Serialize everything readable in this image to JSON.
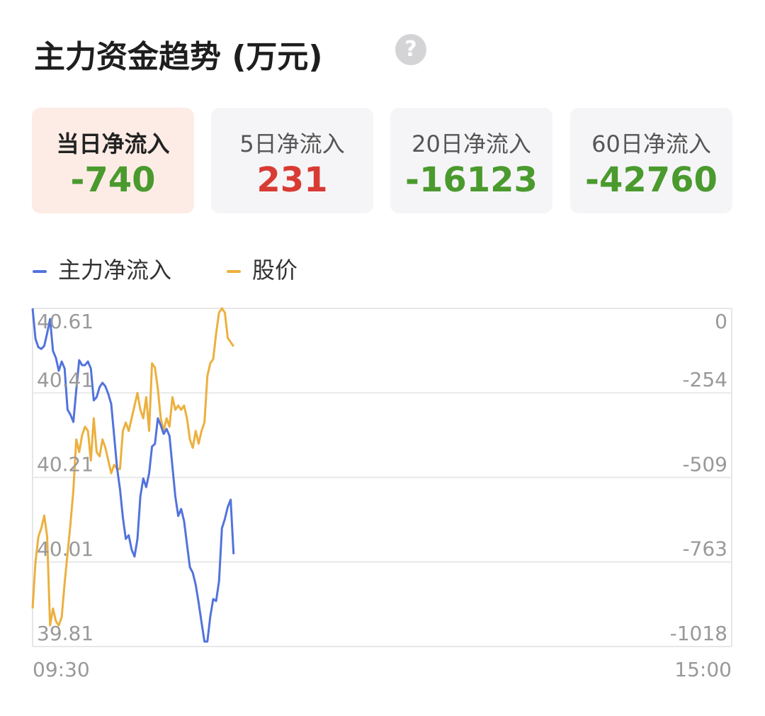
{
  "header": {
    "title": "主力资金趋势 (万元)",
    "help": "?"
  },
  "cards": [
    {
      "label": "当日净流入",
      "value": -740,
      "color": "#4a9a2e",
      "active": true
    },
    {
      "label": "5日净流入",
      "value": 231,
      "color": "#d83a34",
      "active": false
    },
    {
      "label": "20日净流入",
      "value": -16123,
      "color": "#4a9a2e",
      "active": false
    },
    {
      "label": "60日净流入",
      "value": -42760,
      "color": "#4a9a2e",
      "active": false
    }
  ],
  "chart_data": {
    "type": "line",
    "x": [
      0,
      1,
      2,
      3,
      4,
      5,
      6,
      7,
      8,
      9,
      10,
      11,
      12,
      13,
      14,
      15,
      16,
      17,
      18,
      19,
      20,
      21,
      22,
      23,
      24,
      25,
      26,
      27,
      28,
      29,
      30,
      31,
      32,
      33,
      34,
      35,
      36,
      37,
      38,
      39,
      40,
      41,
      42,
      43,
      44,
      45,
      46,
      47,
      48,
      49,
      50,
      51,
      52,
      53,
      54,
      55,
      56,
      57,
      58,
      59,
      60,
      61,
      62,
      63,
      64,
      65,
      66,
      67,
      68,
      69
    ],
    "xlim": [
      0,
      240
    ],
    "xticks": [
      {
        "value": 0,
        "label": "09:30"
      },
      {
        "value": 240,
        "label": "15:00"
      }
    ],
    "series": [
      {
        "name": "主力净流入",
        "color": "#5273dc",
        "axis": "y2",
        "values": [
          0,
          -92,
          -117,
          -122,
          -113,
          -75,
          -32,
          -128,
          -149,
          -188,
          -160,
          -181,
          -305,
          -320,
          -342,
          -245,
          -156,
          -171,
          -171,
          -160,
          -181,
          -277,
          -267,
          -237,
          -224,
          -235,
          -258,
          -288,
          -384,
          -480,
          -544,
          -630,
          -694,
          -683,
          -726,
          -747,
          -694,
          -566,
          -512,
          -538,
          -497,
          -416,
          -408,
          -331,
          -352,
          -378,
          -363,
          -384,
          -476,
          -566,
          -625,
          -604,
          -640,
          -710,
          -779,
          -796,
          -832,
          -886,
          -945,
          -1003,
          -1003,
          -928,
          -875,
          -881,
          -822,
          -662,
          -634,
          -598,
          -576,
          -740
        ]
      },
      {
        "name": "股价",
        "color": "#ecb03e",
        "values": [
          39.9,
          40.01,
          40.07,
          40.09,
          40.12,
          40.07,
          39.86,
          39.9,
          39.87,
          39.86,
          39.88,
          39.96,
          40.03,
          40.1,
          40.18,
          40.3,
          40.27,
          40.31,
          40.33,
          40.32,
          40.25,
          40.35,
          40.27,
          40.26,
          40.3,
          40.28,
          40.25,
          40.22,
          40.24,
          40.23,
          40.23,
          40.32,
          40.34,
          40.32,
          40.35,
          40.38,
          40.41,
          40.37,
          40.35,
          40.4,
          40.32,
          40.48,
          40.47,
          40.42,
          40.35,
          40.32,
          40.35,
          40.33,
          40.4,
          40.37,
          40.38,
          40.37,
          40.38,
          40.35,
          40.3,
          40.28,
          40.32,
          40.29,
          40.32,
          40.34,
          40.45,
          40.48,
          40.49,
          40.55,
          40.6,
          40.61,
          40.6,
          40.54,
          40.53,
          40.52
        ]
      }
    ],
    "ylim": [
      39.81,
      40.61
    ],
    "yticks": [
      40.61,
      40.41,
      40.21,
      40.01,
      39.81
    ],
    "y2lim": [
      -1018,
      0
    ],
    "y2ticks": [
      0,
      -254,
      -509,
      -763,
      -1018
    ],
    "grid": true
  }
}
